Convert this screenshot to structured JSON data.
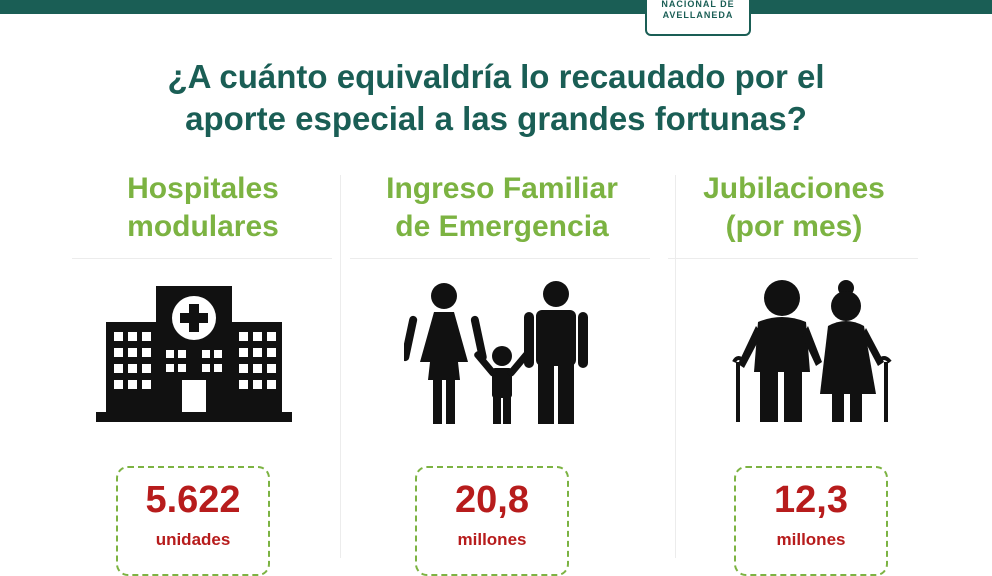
{
  "logo": {
    "line1": "NACIONAL DE",
    "line2": "AVELLANEDA"
  },
  "title": {
    "line1": "¿A cuánto equivaldría lo recaudado por el",
    "line2": "aporte especial a las grandes fortunas?"
  },
  "columns": [
    {
      "heading_line1": "Hospitales",
      "heading_line2": "modulares",
      "icon": "hospital-icon",
      "value": "5.622",
      "unit": "unidades"
    },
    {
      "heading_line1": "Ingreso Familiar",
      "heading_line2": "de Emergencia",
      "icon": "family-icon",
      "value": "20,8",
      "unit": "millones"
    },
    {
      "heading_line1": "Jubilaciones",
      "heading_line2": "(por mes)",
      "icon": "elderly-couple-icon",
      "value": "12,3",
      "unit": "millones"
    }
  ],
  "colors": {
    "brand": "#1a5e55",
    "heading": "#7cb342",
    "value": "#b71c1c",
    "icon": "#111111"
  }
}
